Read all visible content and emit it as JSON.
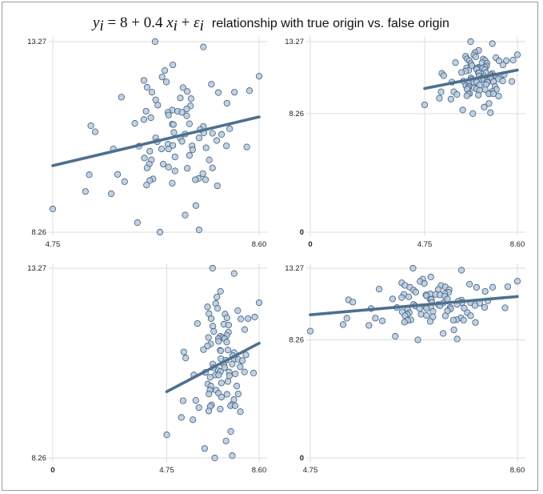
{
  "title": {
    "equation": "y",
    "equation_sub_y": "i",
    "equation_mid": " = 8 + 0.4 ",
    "equation_x": "x",
    "equation_sub_x": "i",
    "equation_plus": " + ",
    "equation_eps": "ε",
    "equation_sub_eps": "i",
    "text": "relationship with true origin vs. false origin"
  },
  "colors": {
    "marker_fill": "#b9c9dc",
    "marker_stroke": "#3d5f80",
    "fit_line": "#4f6f8f",
    "grid": "#dddddd"
  },
  "chart_data": [
    {
      "type": "scatter",
      "panel": "top-left",
      "xlim": [
        4.75,
        8.6
      ],
      "ylim": [
        8.26,
        13.27
      ],
      "xticks": [
        "4.75",
        "8.60"
      ],
      "yticks": [
        "8.26",
        "13.27"
      ],
      "grid": true
    },
    {
      "type": "scatter",
      "panel": "top-right",
      "xlim": [
        0,
        8.6
      ],
      "ylim": [
        0,
        13.27
      ],
      "xticks": [
        "0",
        "4.75",
        "8.60"
      ],
      "yticks": [
        "0",
        "8.26",
        "13.27"
      ],
      "grid": true
    },
    {
      "type": "scatter",
      "panel": "bottom-left",
      "xlim": [
        0,
        8.6
      ],
      "ylim": [
        8.26,
        13.27
      ],
      "xticks": [
        "0",
        "4.75",
        "8.60"
      ],
      "yticks": [
        "8.26",
        "13.27"
      ],
      "grid": true
    },
    {
      "type": "scatter",
      "panel": "bottom-right",
      "xlim": [
        4.75,
        8.6
      ],
      "ylim": [
        0,
        13.27
      ],
      "xticks": [
        "4.75",
        "8.60"
      ],
      "yticks": [
        "0",
        "8.26",
        "13.27"
      ],
      "grid": true
    }
  ],
  "points": {
    "x": [
      6.66,
      7.56,
      6.99,
      6.84,
      6.79,
      6.87,
      6.45,
      6.51,
      6.6,
      8.6,
      7.71,
      7.18,
      7.26,
      7.84,
      8.14,
      8.42,
      6.03,
      6.67,
      7.13,
      7.33,
      6.71,
      7.32,
      8.0,
      7.25,
      6.49,
      6.98,
      7.08,
      7.16,
      6.9,
      6.91,
      7.25,
      6.58,
      6.45,
      6.28,
      5.46,
      5.54,
      6.98,
      7.0,
      7.3,
      7.56,
      7.5,
      7.01,
      7.22,
      7.57,
      7.73,
      7.9,
      8.05,
      6.67,
      6.7,
      7.13,
      7.16,
      7.48,
      7.81,
      6.36,
      5.88,
      6.9,
      6.99,
      6.78,
      6.91,
      7.35,
      7.36,
      7.61,
      7.99,
      8.37,
      6.56,
      7.03,
      7.3,
      6.46,
      6.59,
      7.67,
      6.55,
      6.51,
      6.81,
      6.91,
      7.26,
      7.03,
      7.73,
      7.55,
      5.43,
      5.96,
      7.47,
      7.41,
      7.6,
      6.62,
      6.56,
      6.09,
      6.98,
      6.5,
      7.82,
      5.36,
      5.84,
      7.42,
      7.22,
      4.75,
      6.33,
      7.48,
      6.75
    ],
    "y": [
      13.27,
      13.13,
      12.66,
      12.51,
      12.34,
      12.21,
      12.25,
      12.07,
      11.94,
      12.36,
      12.15,
      12.06,
      11.96,
      11.93,
      11.94,
      11.98,
      11.81,
      11.74,
      11.79,
      11.77,
      11.6,
      11.58,
      11.65,
      11.5,
      11.44,
      11.47,
      11.44,
      11.41,
      11.41,
      11.34,
      11.32,
      11.27,
      11.22,
      11.12,
      11.06,
      10.9,
      11.1,
      11.09,
      11.11,
      11.04,
      10.96,
      10.88,
      10.84,
      10.87,
      10.86,
      10.83,
      10.98,
      10.74,
      10.64,
      10.73,
      10.65,
      10.74,
      10.67,
      10.52,
      10.45,
      10.57,
      10.54,
      10.45,
      10.45,
      10.53,
      10.43,
      10.48,
      10.53,
      10.5,
      10.39,
      10.24,
      10.28,
      10.21,
      10.16,
      10.16,
      10.05,
      9.95,
      10.05,
      9.97,
      9.94,
      9.87,
      9.95,
      9.8,
      9.77,
      9.78,
      9.67,
      9.64,
      9.64,
      9.66,
      9.62,
      9.59,
      9.55,
      9.5,
      9.48,
      9.33,
      9.27,
      8.96,
      8.71,
      8.87,
      8.51,
      8.32,
      8.26
    ]
  },
  "fit_line": {
    "x": [
      4.75,
      8.6
    ],
    "y": [
      10.01,
      11.29
    ]
  }
}
